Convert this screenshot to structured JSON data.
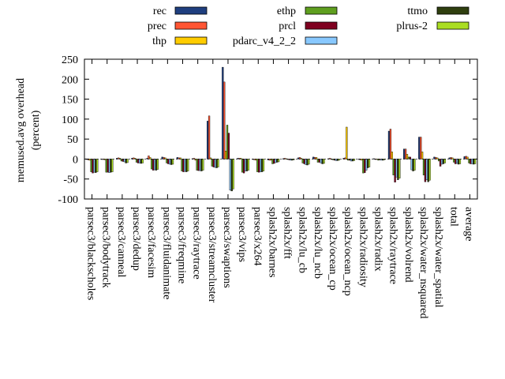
{
  "chart_data": {
    "type": "bar",
    "ylabel": "memused.avg overhead",
    "ylabel_unit": "(percent)",
    "ylim": [
      -100,
      250
    ],
    "yticks": [
      -100,
      -50,
      0,
      50,
      100,
      150,
      200,
      250
    ],
    "legend_position": "top",
    "categories": [
      "parsec3/blackscholes",
      "parsec3/bodytrack",
      "parsec3/canneal",
      "parsec3/dedup",
      "parsec3/facesim",
      "parsec3/fluidanimate",
      "parsec3/freqmine",
      "parsec3/raytrace",
      "parsec3/streamcluster",
      "parsec3/swaptions",
      "parsec3/vips",
      "parsec3/x264",
      "splash2x/barnes",
      "splash2x/fft",
      "splash2x/lu_cb",
      "splash2x/lu_ncb",
      "splash2x/ocean_cp",
      "splash2x/ocean_ncp",
      "splash2x/radiosity",
      "splash2x/radix",
      "splash2x/raytrace",
      "splash2x/volrend",
      "splash2x/water_nsquared",
      "splash2x/water_spatial",
      "total",
      "average"
    ],
    "series": [
      {
        "name": "rec",
        "color": "#1f3f7f",
        "values": [
          -1,
          -1,
          2,
          2,
          2,
          5,
          4,
          1,
          95,
          230,
          2,
          -1,
          -2,
          1,
          3,
          5,
          1,
          2,
          -1,
          1,
          70,
          25,
          55,
          5,
          3,
          6
        ]
      },
      {
        "name": "prec",
        "color": "#ff5533",
        "values": [
          -2,
          -1,
          3,
          3,
          8,
          4,
          3,
          2,
          108,
          193,
          2,
          -2,
          -3,
          2,
          4,
          4,
          2,
          3,
          -2,
          0,
          75,
          25,
          55,
          4,
          4,
          7
        ]
      },
      {
        "name": "thp",
        "color": "#ffcc00",
        "values": [
          -3,
          -2,
          2,
          2,
          4,
          3,
          3,
          -3,
          3,
          20,
          2,
          -3,
          -3,
          1,
          2,
          4,
          0,
          80,
          -3,
          0,
          18,
          12,
          18,
          3,
          3,
          5
        ]
      },
      {
        "name": "ethp",
        "color": "#5f9f1f",
        "values": [
          -32,
          -33,
          -5,
          -8,
          -25,
          -10,
          -30,
          -28,
          -18,
          85,
          -33,
          -32,
          -12,
          -1,
          -10,
          -8,
          -2,
          -3,
          -35,
          -3,
          -40,
          5,
          -40,
          -5,
          -8,
          -10
        ]
      },
      {
        "name": "prcl",
        "color": "#7f0020",
        "values": [
          -35,
          -33,
          -6,
          -10,
          -28,
          -12,
          -32,
          -29,
          -20,
          65,
          -35,
          -33,
          -11,
          -2,
          -12,
          -8,
          -3,
          -3,
          -34,
          -2,
          -58,
          5,
          -57,
          -18,
          -12,
          -12
        ]
      },
      {
        "name": "pdarc_v4_2_2",
        "color": "#88c8ff",
        "values": [
          -33,
          -34,
          -7,
          -10,
          -27,
          -13,
          -31,
          -29,
          -21,
          -78,
          -30,
          -32,
          -9,
          -3,
          -14,
          -10,
          -4,
          -5,
          -28,
          -3,
          -45,
          -27,
          -52,
          -13,
          -11,
          -12
        ]
      },
      {
        "name": "ttmo",
        "color": "#2f3f0f",
        "values": [
          -34,
          -33,
          -10,
          -11,
          -28,
          -14,
          -32,
          -30,
          -22,
          -80,
          -30,
          -32,
          -8,
          -3,
          -15,
          -12,
          -4,
          -5,
          -22,
          -3,
          -52,
          -30,
          -57,
          -12,
          -13,
          -13
        ]
      },
      {
        "name": "plrus-2",
        "color": "#aadd22",
        "values": [
          -32,
          -32,
          -9,
          -10,
          -26,
          -13,
          -30,
          -28,
          -20,
          -75,
          -28,
          -30,
          -7,
          -2,
          -13,
          -11,
          -3,
          -4,
          -20,
          -2,
          -48,
          -28,
          -53,
          -10,
          -12,
          -12
        ]
      }
    ]
  }
}
